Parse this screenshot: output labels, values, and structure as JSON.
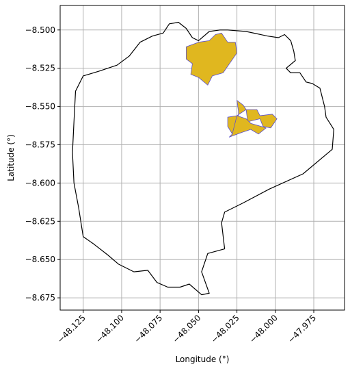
{
  "chart_data": {
    "type": "map",
    "xlabel": "Longitude (°)",
    "ylabel": "Latitude (°)",
    "xlim": [
      -48.14,
      -47.955
    ],
    "ylim": [
      -8.683,
      -8.484
    ],
    "grid": true,
    "xticks": [
      {
        "value": -48.125,
        "label": "−48.125"
      },
      {
        "value": -48.1,
        "label": "−48.100"
      },
      {
        "value": -48.075,
        "label": "−48.075"
      },
      {
        "value": -48.05,
        "label": "−48.050"
      },
      {
        "value": -48.025,
        "label": "−48.025"
      },
      {
        "value": -48.0,
        "label": "−48.000"
      },
      {
        "value": -47.975,
        "label": "−47.975"
      }
    ],
    "yticks": [
      {
        "value": -8.5,
        "label": "−8.500"
      },
      {
        "value": -8.525,
        "label": "−8.525"
      },
      {
        "value": -8.55,
        "label": "−8.550"
      },
      {
        "value": -8.575,
        "label": "−8.575"
      },
      {
        "value": -8.6,
        "label": "−8.600"
      },
      {
        "value": -8.625,
        "label": "−8.625"
      },
      {
        "value": -8.65,
        "label": "−8.650"
      },
      {
        "value": -8.675,
        "label": "−8.675"
      }
    ],
    "colors": {
      "boundary": "#000000",
      "fill": "#e0b71f",
      "fill_edge": "#5a4fcf",
      "grid": "#b0b0b0"
    },
    "boundary": [
      [
        -48.031,
        -8.5
      ],
      [
        -48.019,
        -8.501
      ],
      [
        -48.005,
        -8.504
      ],
      [
        -47.998,
        -8.505
      ],
      [
        -47.994,
        -8.503
      ],
      [
        -47.99,
        -8.507
      ],
      [
        -47.988,
        -8.514
      ],
      [
        -47.987,
        -8.52
      ],
      [
        -47.993,
        -8.525
      ],
      [
        -47.99,
        -8.528
      ],
      [
        -47.984,
        -8.528
      ],
      [
        -47.98,
        -8.534
      ],
      [
        -47.976,
        -8.535
      ],
      [
        -47.971,
        -8.538
      ],
      [
        -47.968,
        -8.55
      ],
      [
        -47.967,
        -8.557
      ],
      [
        -47.962,
        -8.565
      ],
      [
        -47.963,
        -8.578
      ],
      [
        -47.982,
        -8.594
      ],
      [
        -48.004,
        -8.604
      ],
      [
        -48.021,
        -8.613
      ],
      [
        -48.033,
        -8.619
      ],
      [
        -48.035,
        -8.626
      ],
      [
        -48.033,
        -8.643
      ],
      [
        -48.044,
        -8.646
      ],
      [
        -48.048,
        -8.658
      ],
      [
        -48.043,
        -8.672
      ],
      [
        -48.048,
        -8.673
      ],
      [
        -48.056,
        -8.666
      ],
      [
        -48.062,
        -8.668
      ],
      [
        -48.07,
        -8.668
      ],
      [
        -48.077,
        -8.665
      ],
      [
        -48.083,
        -8.657
      ],
      [
        -48.092,
        -8.658
      ],
      [
        -48.102,
        -8.653
      ],
      [
        -48.109,
        -8.647
      ],
      [
        -48.118,
        -8.64
      ],
      [
        -48.125,
        -8.635
      ],
      [
        -48.128,
        -8.616
      ],
      [
        -48.131,
        -8.6
      ],
      [
        -48.132,
        -8.58
      ],
      [
        -48.131,
        -8.56
      ],
      [
        -48.13,
        -8.54
      ],
      [
        -48.125,
        -8.53
      ],
      [
        -48.115,
        -8.527
      ],
      [
        -48.103,
        -8.523
      ],
      [
        -48.095,
        -8.517
      ],
      [
        -48.088,
        -8.508
      ],
      [
        -48.08,
        -8.504
      ],
      [
        -48.073,
        -8.502
      ],
      [
        -48.069,
        -8.496
      ],
      [
        -48.063,
        -8.495
      ],
      [
        -48.058,
        -8.499
      ],
      [
        -48.054,
        -8.505
      ],
      [
        -48.05,
        -8.507
      ],
      [
        -48.043,
        -8.501
      ],
      [
        -48.036,
        -8.5
      ],
      [
        -48.031,
        -8.5
      ]
    ],
    "regions": [
      {
        "polygon": [
          [
            -48.058,
            -8.511
          ],
          [
            -48.05,
            -8.508
          ],
          [
            -48.043,
            -8.507
          ],
          [
            -48.039,
            -8.503
          ],
          [
            -48.035,
            -8.502
          ],
          [
            -48.031,
            -8.508
          ],
          [
            -48.026,
            -8.508
          ],
          [
            -48.025,
            -8.515
          ],
          [
            -48.034,
            -8.528
          ],
          [
            -48.041,
            -8.53
          ],
          [
            -48.044,
            -8.536
          ],
          [
            -48.05,
            -8.531
          ],
          [
            -48.055,
            -8.529
          ],
          [
            -48.054,
            -8.522
          ],
          [
            -48.058,
            -8.519
          ],
          [
            -48.058,
            -8.511
          ]
        ]
      },
      {
        "polygon": [
          [
            -48.025,
            -8.546
          ],
          [
            -48.021,
            -8.549
          ],
          [
            -48.019,
            -8.552
          ],
          [
            -48.025,
            -8.556
          ],
          [
            -48.031,
            -8.557
          ],
          [
            -48.031,
            -8.563
          ],
          [
            -48.028,
            -8.568
          ],
          [
            -48.026,
            -8.568
          ],
          [
            -48.024,
            -8.56
          ],
          [
            -48.024,
            -8.553
          ],
          [
            -48.025,
            -8.546
          ]
        ]
      },
      {
        "polygon": [
          [
            -48.019,
            -8.552
          ],
          [
            -48.012,
            -8.552
          ],
          [
            -48.01,
            -8.556
          ],
          [
            -48.002,
            -8.555
          ],
          [
            -47.999,
            -8.558
          ],
          [
            -48.003,
            -8.564
          ],
          [
            -48.008,
            -8.563
          ],
          [
            -48.01,
            -8.558
          ],
          [
            -48.018,
            -8.56
          ],
          [
            -48.019,
            -8.552
          ]
        ]
      },
      {
        "polygon": [
          [
            -48.025,
            -8.556
          ],
          [
            -48.019,
            -8.558
          ],
          [
            -48.016,
            -8.561
          ],
          [
            -48.006,
            -8.564
          ],
          [
            -48.011,
            -8.568
          ],
          [
            -48.016,
            -8.565
          ],
          [
            -48.022,
            -8.567
          ],
          [
            -48.03,
            -8.57
          ],
          [
            -48.028,
            -8.568
          ],
          [
            -48.025,
            -8.556
          ]
        ]
      }
    ]
  }
}
